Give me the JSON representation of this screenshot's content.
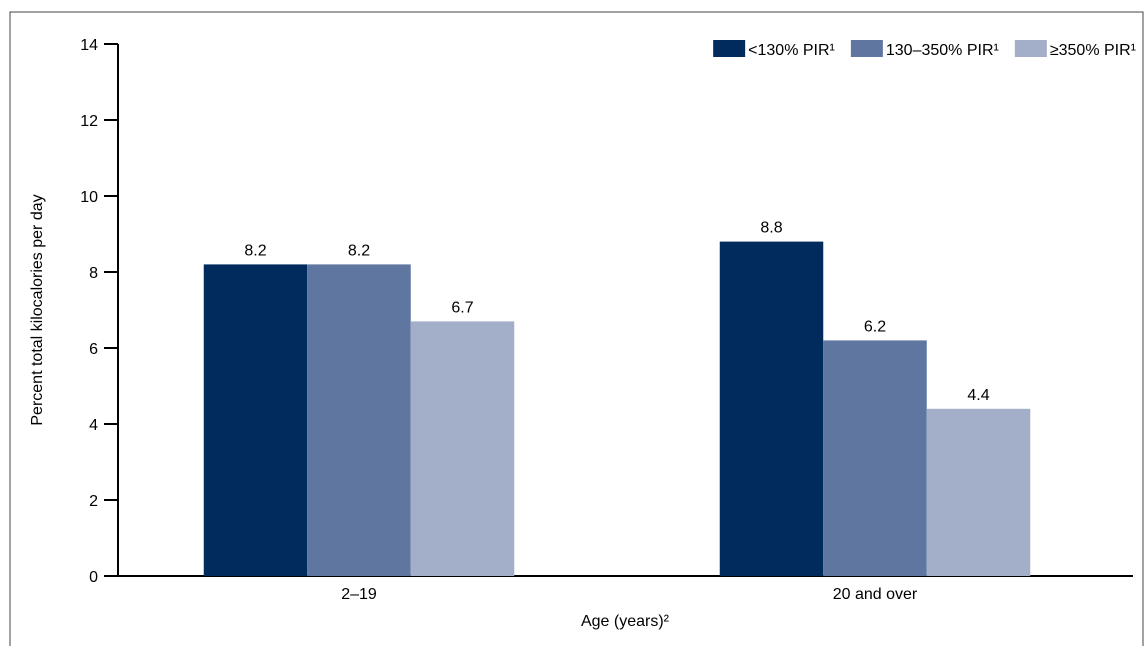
{
  "chart_data": {
    "type": "bar",
    "x_label": "Age (years)²",
    "y_label": "Percent total kilocalories per day",
    "categories": [
      "2–19",
      "20 and over"
    ],
    "series": [
      {
        "name": "<130% PIR¹",
        "color": "#002b5c",
        "values": [
          8.2,
          8.8
        ]
      },
      {
        "name": "130–350% PIR¹",
        "color": "#5f77a0",
        "values": [
          8.2,
          6.2
        ]
      },
      {
        "name": "≥350% PIR¹",
        "color": "#a3aec8",
        "values": [
          6.7,
          4.4
        ]
      }
    ],
    "ylim": [
      0,
      14
    ],
    "yticks": [
      0,
      2,
      4,
      6,
      8,
      10,
      12,
      14
    ],
    "grid": false,
    "legend": "upper right",
    "data_labels": true
  }
}
